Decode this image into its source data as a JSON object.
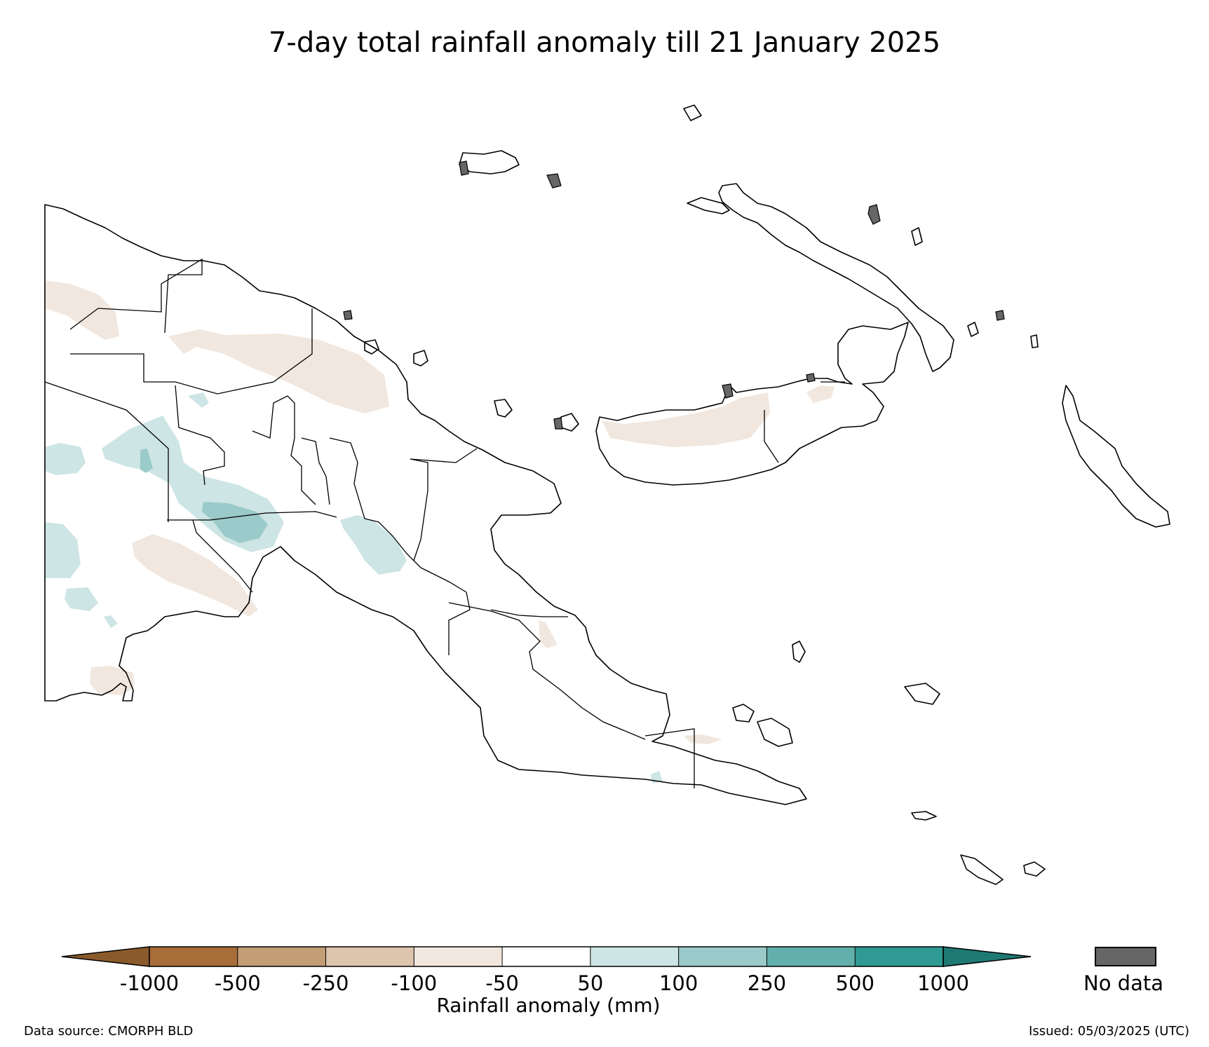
{
  "title": "7-day total rainfall anomaly till 21 January 2025",
  "legend": {
    "label": "Rainfall anomaly (mm)",
    "ticks": [
      "-1000",
      "-500",
      "-250",
      "-100",
      "-50",
      "50",
      "100",
      "250",
      "500",
      "1000"
    ],
    "colors": [
      "#a86d39",
      "#c39d75",
      "#dcc5ac",
      "#f1e7de",
      "#ffffff",
      "#cde5e4",
      "#9acbca",
      "#62b0ab",
      "#2f9a93"
    ],
    "under_color": "#8b5a2b",
    "over_color": "#1f7a74",
    "no_data_label": "No data",
    "no_data_color": "#666666"
  },
  "footer": {
    "source": "Data source: CMORPH BLD",
    "issued": "Issued: 05/03/2025 (UTC)"
  }
}
